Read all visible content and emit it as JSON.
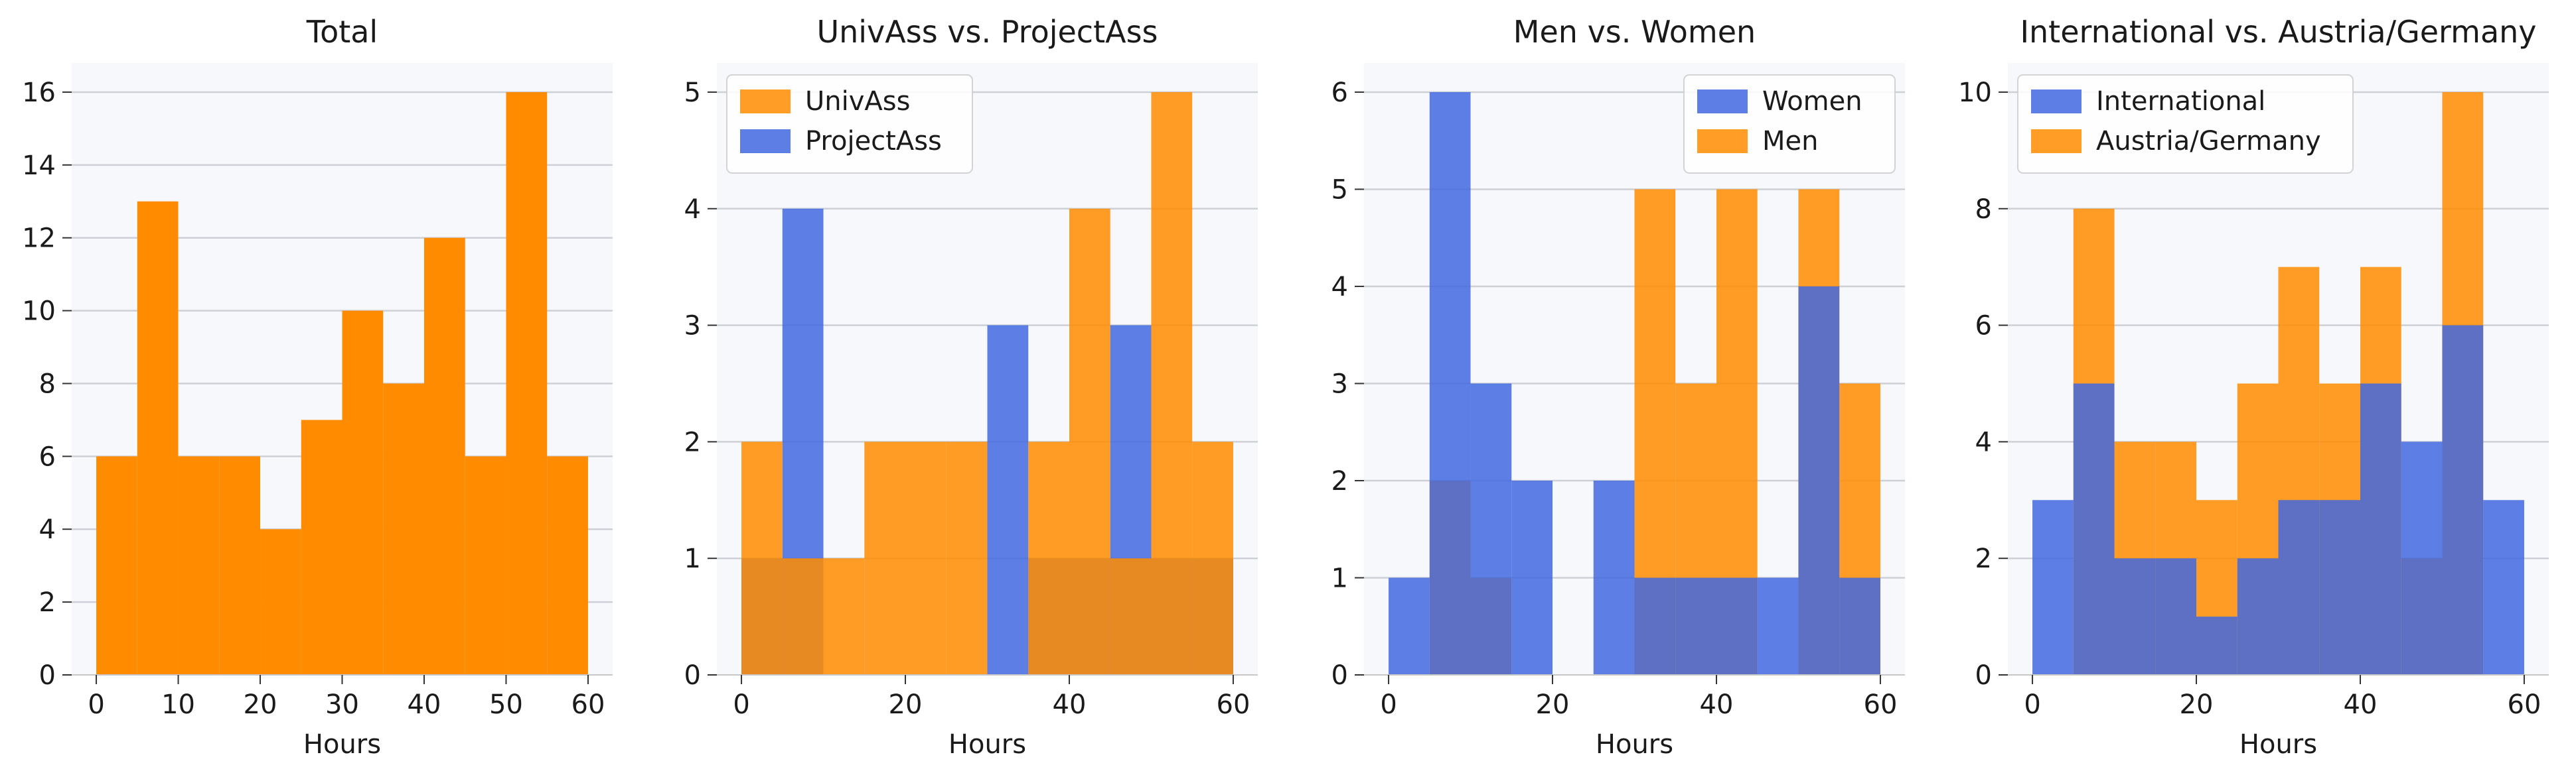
{
  "chart_data": [
    {
      "type": "histogram",
      "title": "Total",
      "xlabel": "Hours",
      "ylabel": "",
      "xlim": [
        -3,
        63
      ],
      "ylim": [
        0,
        16.8
      ],
      "xticks": [
        0,
        10,
        20,
        30,
        40,
        50,
        60
      ],
      "yticks": [
        0,
        2,
        4,
        6,
        8,
        10,
        12,
        14,
        16
      ],
      "bin_edges": [
        0,
        5,
        10,
        15,
        20,
        25,
        30,
        35,
        40,
        45,
        50,
        55,
        60
      ],
      "grid": "y",
      "legend": null,
      "series": [
        {
          "values": [
            6,
            13,
            6,
            6,
            4,
            7,
            10,
            8,
            12,
            6,
            16,
            6
          ],
          "color": "#ff8c00",
          "opacity": 1.0
        }
      ]
    },
    {
      "type": "histogram",
      "title": "UnivAss vs. ProjectAss",
      "xlabel": "Hours",
      "ylabel": "",
      "xlim": [
        -3,
        63
      ],
      "ylim": [
        0,
        5.25
      ],
      "xticks": [
        0,
        20,
        40,
        60
      ],
      "yticks": [
        0,
        1,
        2,
        3,
        4,
        5
      ],
      "bin_edges": [
        0,
        5,
        10,
        15,
        20,
        25,
        30,
        35,
        40,
        45,
        50,
        55,
        60
      ],
      "grid": "y",
      "legend": "top-left",
      "series": [
        {
          "name": "ProjectAss",
          "values": [
            1,
            4,
            0,
            0,
            0,
            0,
            3,
            1,
            1,
            3,
            1,
            1
          ],
          "color": "#4169e1",
          "opacity": 0.85
        },
        {
          "name": "UnivAss",
          "values": [
            2,
            1,
            1,
            2,
            2,
            2,
            0,
            2,
            4,
            1,
            5,
            2
          ],
          "color": "#ff8c00",
          "opacity": 0.85
        }
      ]
    },
    {
      "type": "histogram",
      "title": "Men vs. Women",
      "xlabel": "Hours",
      "ylabel": "",
      "xlim": [
        -3,
        63
      ],
      "ylim": [
        0,
        6.3
      ],
      "xticks": [
        0,
        20,
        40,
        60
      ],
      "yticks": [
        0,
        1,
        2,
        3,
        4,
        5,
        6
      ],
      "bin_edges": [
        0,
        5,
        10,
        15,
        20,
        25,
        30,
        35,
        40,
        45,
        50,
        55,
        60
      ],
      "grid": "y",
      "legend": "top-right",
      "series": [
        {
          "name": "Men",
          "values": [
            0,
            2,
            1,
            0,
            0,
            0,
            5,
            3,
            5,
            0,
            5,
            3
          ],
          "color": "#ff8c00",
          "opacity": 0.85
        },
        {
          "name": "Women",
          "values": [
            1,
            6,
            3,
            2,
            0,
            2,
            1,
            1,
            1,
            1,
            4,
            1
          ],
          "color": "#4169e1",
          "opacity": 0.85
        }
      ]
    },
    {
      "type": "histogram",
      "title": "International vs. Austria/Germany",
      "xlabel": "Hours",
      "ylabel": "",
      "xlim": [
        -3,
        63
      ],
      "ylim": [
        0,
        10.5
      ],
      "xticks": [
        0,
        20,
        40,
        60
      ],
      "yticks": [
        0,
        2,
        4,
        6,
        8,
        10
      ],
      "bin_edges": [
        0,
        5,
        10,
        15,
        20,
        25,
        30,
        35,
        40,
        45,
        50,
        55,
        60
      ],
      "grid": "y",
      "legend": "top-left",
      "series": [
        {
          "name": "Austria/Germany",
          "values": [
            0,
            8,
            4,
            4,
            3,
            5,
            7,
            5,
            7,
            2,
            10,
            0
          ],
          "color": "#ff8c00",
          "opacity": 0.85
        },
        {
          "name": "International",
          "values": [
            3,
            5,
            2,
            2,
            1,
            2,
            3,
            3,
            5,
            4,
            6,
            3
          ],
          "color": "#4169e1",
          "opacity": 0.85
        }
      ]
    }
  ]
}
